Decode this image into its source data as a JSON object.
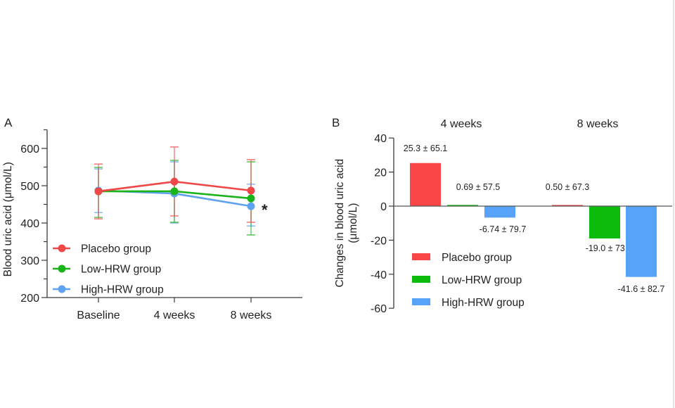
{
  "chart_data": [
    {
      "type": "line",
      "panel_label": "A",
      "title": "",
      "xlabel": "",
      "ylabel": "Blood uric acid (μmol/L)",
      "categories": [
        "Baseline",
        "4 weeks",
        "8 weeks"
      ],
      "ylim": [
        200,
        650
      ],
      "yticks": [
        200,
        300,
        400,
        500,
        600
      ],
      "ytick_labels": [
        "200",
        "300",
        "400",
        "500",
        "600"
      ],
      "legend_position": "bottom-left",
      "series": [
        {
          "name": "Placebo group",
          "color": "#f04848",
          "values": [
            485,
            511,
            487
          ],
          "err_upper": [
            558,
            604,
            570
          ],
          "err_lower": [
            411,
            419,
            402
          ]
        },
        {
          "name": "Low-HRW group",
          "color": "#19b419",
          "values": [
            485,
            485,
            466
          ],
          "err_upper": [
            549,
            568,
            564
          ],
          "err_lower": [
            415,
            402,
            368
          ]
        },
        {
          "name": "High-HRW group",
          "color": "#5ea2f0",
          "values": [
            487,
            479,
            445
          ],
          "err_upper": [
            545,
            564,
            504
          ],
          "err_lower": [
            428,
            400,
            392
          ]
        }
      ],
      "annotations": [
        {
          "text": "*",
          "at": "8 weeks",
          "series": "High-HRW group"
        }
      ]
    },
    {
      "type": "bar",
      "panel_label": "B",
      "group_titles": [
        "4 weeks",
        "8 weeks"
      ],
      "xlabel": "",
      "ylabel": "Changes in blood uric acid (μmol/L)",
      "ylabel_lines": [
        "Changes in blood uric acid",
        "(μmol/L)"
      ],
      "ylim": [
        -60,
        40
      ],
      "yticks": [
        40,
        20,
        0,
        -20,
        -40,
        -60
      ],
      "ytick_labels": [
        "40",
        "20",
        "0",
        "-20",
        "-40",
        "-60"
      ],
      "legend_position": "bottom-left",
      "series": [
        {
          "name": "Placebo group",
          "color": "#fa4646",
          "values": [
            25.3,
            0.5
          ],
          "labels": [
            "25.3 ± 65.1",
            "0.50 ± 67.3"
          ]
        },
        {
          "name": "Low-HRW group",
          "color": "#0cbc0c",
          "values": [
            0.69,
            -19.0
          ],
          "labels": [
            "0.69 ± 57.5",
            "-19.0 ± 73.0"
          ]
        },
        {
          "name": "High-HRW group",
          "color": "#58a3fa",
          "values": [
            -6.74,
            -41.6
          ],
          "labels": [
            "-6.74 ± 79.7",
            "-41.6 ± 82.7"
          ]
        }
      ]
    }
  ]
}
